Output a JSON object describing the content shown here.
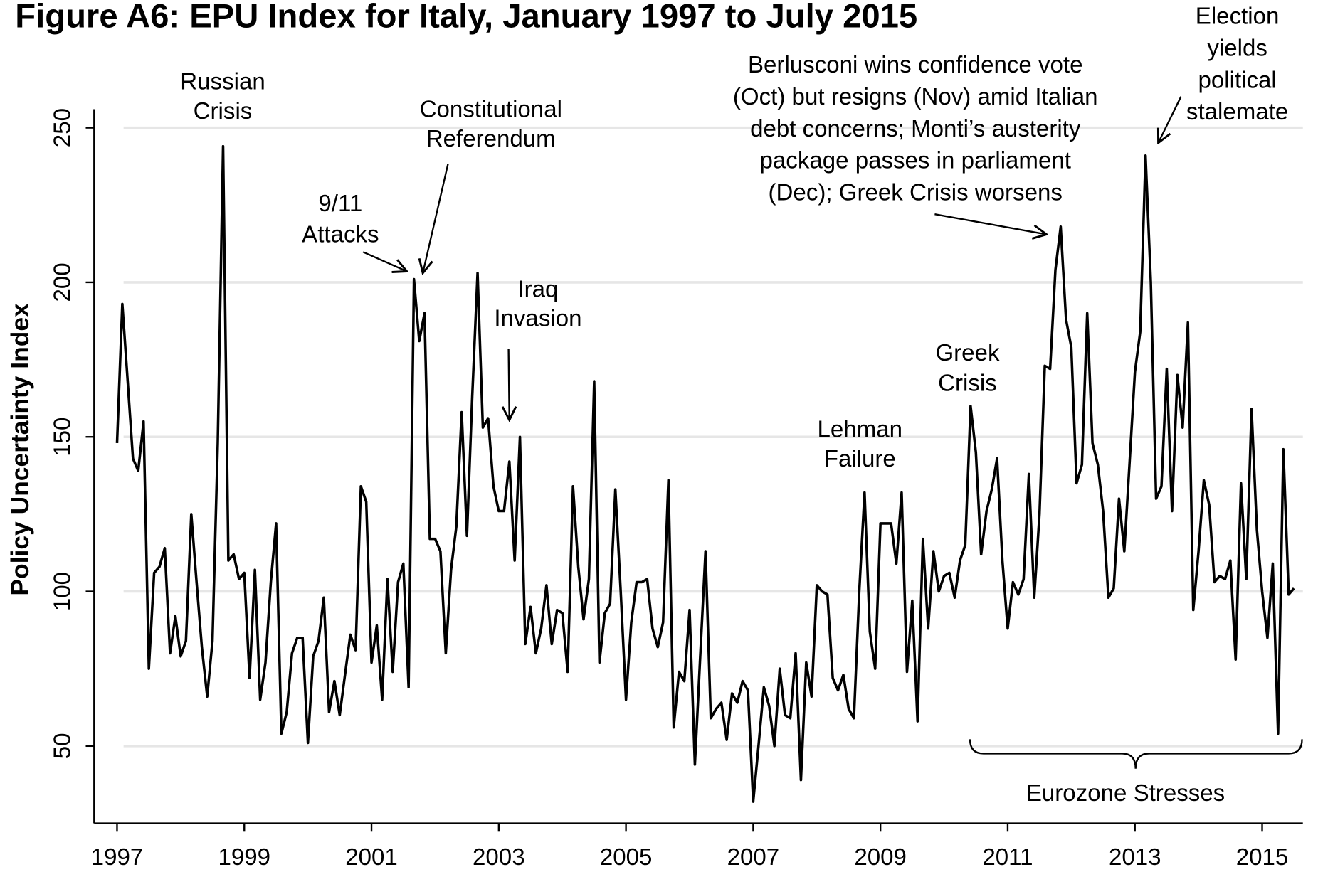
{
  "chart_data": {
    "type": "line",
    "title": "Figure A6: EPU Index for Italy, January 1997 to July 2015",
    "y_label": "Policy Uncertainty Index",
    "color": "#000000",
    "x": [
      1997,
      1997.083,
      1997.167,
      1997.25,
      1997.333,
      1997.417,
      1997.5,
      1997.583,
      1997.667,
      1997.75,
      1997.833,
      1997.917,
      1998,
      1998.083,
      1998.167,
      1998.25,
      1998.333,
      1998.417,
      1998.5,
      1998.583,
      1998.667,
      1998.75,
      1998.833,
      1998.917,
      1999,
      1999.083,
      1999.167,
      1999.25,
      1999.333,
      1999.417,
      1999.5,
      1999.583,
      1999.667,
      1999.75,
      1999.833,
      1999.917,
      2000,
      2000.083,
      2000.167,
      2000.25,
      2000.333,
      2000.417,
      2000.5,
      2000.583,
      2000.667,
      2000.75,
      2000.833,
      2000.917,
      2001,
      2001.083,
      2001.167,
      2001.25,
      2001.333,
      2001.417,
      2001.5,
      2001.583,
      2001.667,
      2001.75,
      2001.833,
      2001.917,
      2002,
      2002.083,
      2002.167,
      2002.25,
      2002.333,
      2002.417,
      2002.5,
      2002.583,
      2002.667,
      2002.75,
      2002.833,
      2002.917,
      2003,
      2003.083,
      2003.167,
      2003.25,
      2003.333,
      2003.417,
      2003.5,
      2003.583,
      2003.667,
      2003.75,
      2003.833,
      2003.917,
      2004,
      2004.083,
      2004.167,
      2004.25,
      2004.333,
      2004.417,
      2004.5,
      2004.583,
      2004.667,
      2004.75,
      2004.833,
      2004.917,
      2005,
      2005.083,
      2005.167,
      2005.25,
      2005.333,
      2005.417,
      2005.5,
      2005.583,
      2005.667,
      2005.75,
      2005.833,
      2005.917,
      2006,
      2006.083,
      2006.167,
      2006.25,
      2006.333,
      2006.417,
      2006.5,
      2006.583,
      2006.667,
      2006.75,
      2006.833,
      2006.917,
      2007,
      2007.083,
      2007.167,
      2007.25,
      2007.333,
      2007.417,
      2007.5,
      2007.583,
      2007.667,
      2007.75,
      2007.833,
      2007.917,
      2008,
      2008.083,
      2008.167,
      2008.25,
      2008.333,
      2008.417,
      2008.5,
      2008.583,
      2008.667,
      2008.75,
      2008.833,
      2008.917,
      2009,
      2009.083,
      2009.167,
      2009.25,
      2009.333,
      2009.417,
      2009.5,
      2009.583,
      2009.667,
      2009.75,
      2009.833,
      2009.917,
      2010,
      2010.083,
      2010.167,
      2010.25,
      2010.333,
      2010.417,
      2010.5,
      2010.583,
      2010.667,
      2010.75,
      2010.833,
      2010.917,
      2011,
      2011.083,
      2011.167,
      2011.25,
      2011.333,
      2011.417,
      2011.5,
      2011.583,
      2011.667,
      2011.75,
      2011.833,
      2011.917,
      2012,
      2012.083,
      2012.167,
      2012.25,
      2012.333,
      2012.417,
      2012.5,
      2012.583,
      2012.667,
      2012.75,
      2012.833,
      2012.917,
      2013,
      2013.083,
      2013.167,
      2013.25,
      2013.333,
      2013.417,
      2013.5,
      2013.583,
      2013.667,
      2013.75,
      2013.833,
      2013.917,
      2014,
      2014.083,
      2014.167,
      2014.25,
      2014.333,
      2014.417,
      2014.5,
      2014.583,
      2014.667,
      2014.75,
      2014.833,
      2014.917,
      2015,
      2015.083,
      2015.167,
      2015.25,
      2015.333,
      2015.417,
      2015.5
    ],
    "values": [
      148,
      193,
      168,
      143,
      139,
      155,
      75,
      106,
      108,
      114,
      80,
      92,
      79,
      84,
      125,
      103,
      82,
      66,
      84,
      148,
      244,
      110,
      112,
      104,
      106,
      72,
      107,
      65,
      77,
      103,
      122,
      54,
      61,
      80,
      85,
      85,
      51,
      79,
      84,
      98,
      61,
      71,
      60,
      73,
      86,
      81,
      134,
      129,
      77,
      89,
      65,
      104,
      74,
      103,
      109,
      69,
      201,
      181,
      190,
      117,
      117,
      113,
      80,
      107,
      121,
      158,
      118,
      163,
      203,
      153,
      156,
      134,
      126,
      126,
      142,
      110,
      150,
      83,
      95,
      80,
      88,
      102,
      83,
      94,
      93,
      74,
      134,
      108,
      91,
      104,
      168,
      77,
      93,
      96,
      133,
      100,
      65,
      90,
      103,
      103,
      104,
      88,
      82,
      90,
      136,
      56,
      74,
      71,
      94,
      44,
      79,
      113,
      59,
      62,
      64,
      52,
      67,
      64,
      71,
      68,
      32,
      50,
      69,
      63,
      50,
      75,
      60,
      59,
      80,
      39,
      77,
      66,
      102,
      100,
      99,
      72,
      68,
      73,
      62,
      59,
      100,
      132,
      87,
      75,
      122,
      122,
      122,
      109,
      132,
      74,
      97,
      58,
      117,
      88,
      113,
      100,
      105,
      106,
      98,
      110,
      115,
      160,
      145,
      112,
      126,
      133,
      143,
      110,
      88,
      103,
      99,
      104,
      138,
      98,
      125,
      173,
      172,
      204,
      218,
      188,
      179,
      135,
      141,
      190,
      148,
      141,
      126,
      98,
      101,
      130,
      113,
      142,
      171,
      184,
      241,
      200,
      130,
      134,
      172,
      126,
      170,
      153,
      187,
      94,
      113,
      136,
      128,
      103,
      105,
      104,
      110,
      78,
      135,
      104,
      159,
      120,
      100,
      85,
      109,
      54,
      146,
      99,
      101
    ],
    "xlim": [
      1996.64,
      2015.64
    ],
    "xticks": [
      1997,
      1999,
      2001,
      2003,
      2005,
      2007,
      2009,
      2011,
      2013,
      2015
    ],
    "ylim": [
      25,
      256
    ],
    "yticks": [
      50,
      100,
      150,
      200,
      250
    ],
    "grid": true,
    "annotations": [
      {
        "lines": [
          "Russian",
          "Crisis"
        ]
      },
      {
        "lines": [
          "9/11",
          "Attacks"
        ]
      },
      {
        "lines": [
          "Constitutional",
          "Referendum"
        ]
      },
      {
        "lines": [
          "Iraq",
          "Invasion"
        ]
      },
      {
        "lines": [
          "Lehman",
          "Failure"
        ]
      },
      {
        "lines": [
          "Greek",
          "Crisis"
        ]
      },
      {
        "lines": [
          "Berlusconi wins confidence vote",
          "(Oct) but resigns (Nov) amid Italian",
          "debt concerns; Monti’s austerity",
          "package passes in parliament",
          "(Dec); Greek Crisis worsens"
        ]
      },
      {
        "lines": [
          "Election",
          "yields",
          "political",
          "stalemate"
        ]
      },
      {
        "lines": [
          "Eurozone Stresses"
        ]
      }
    ]
  }
}
